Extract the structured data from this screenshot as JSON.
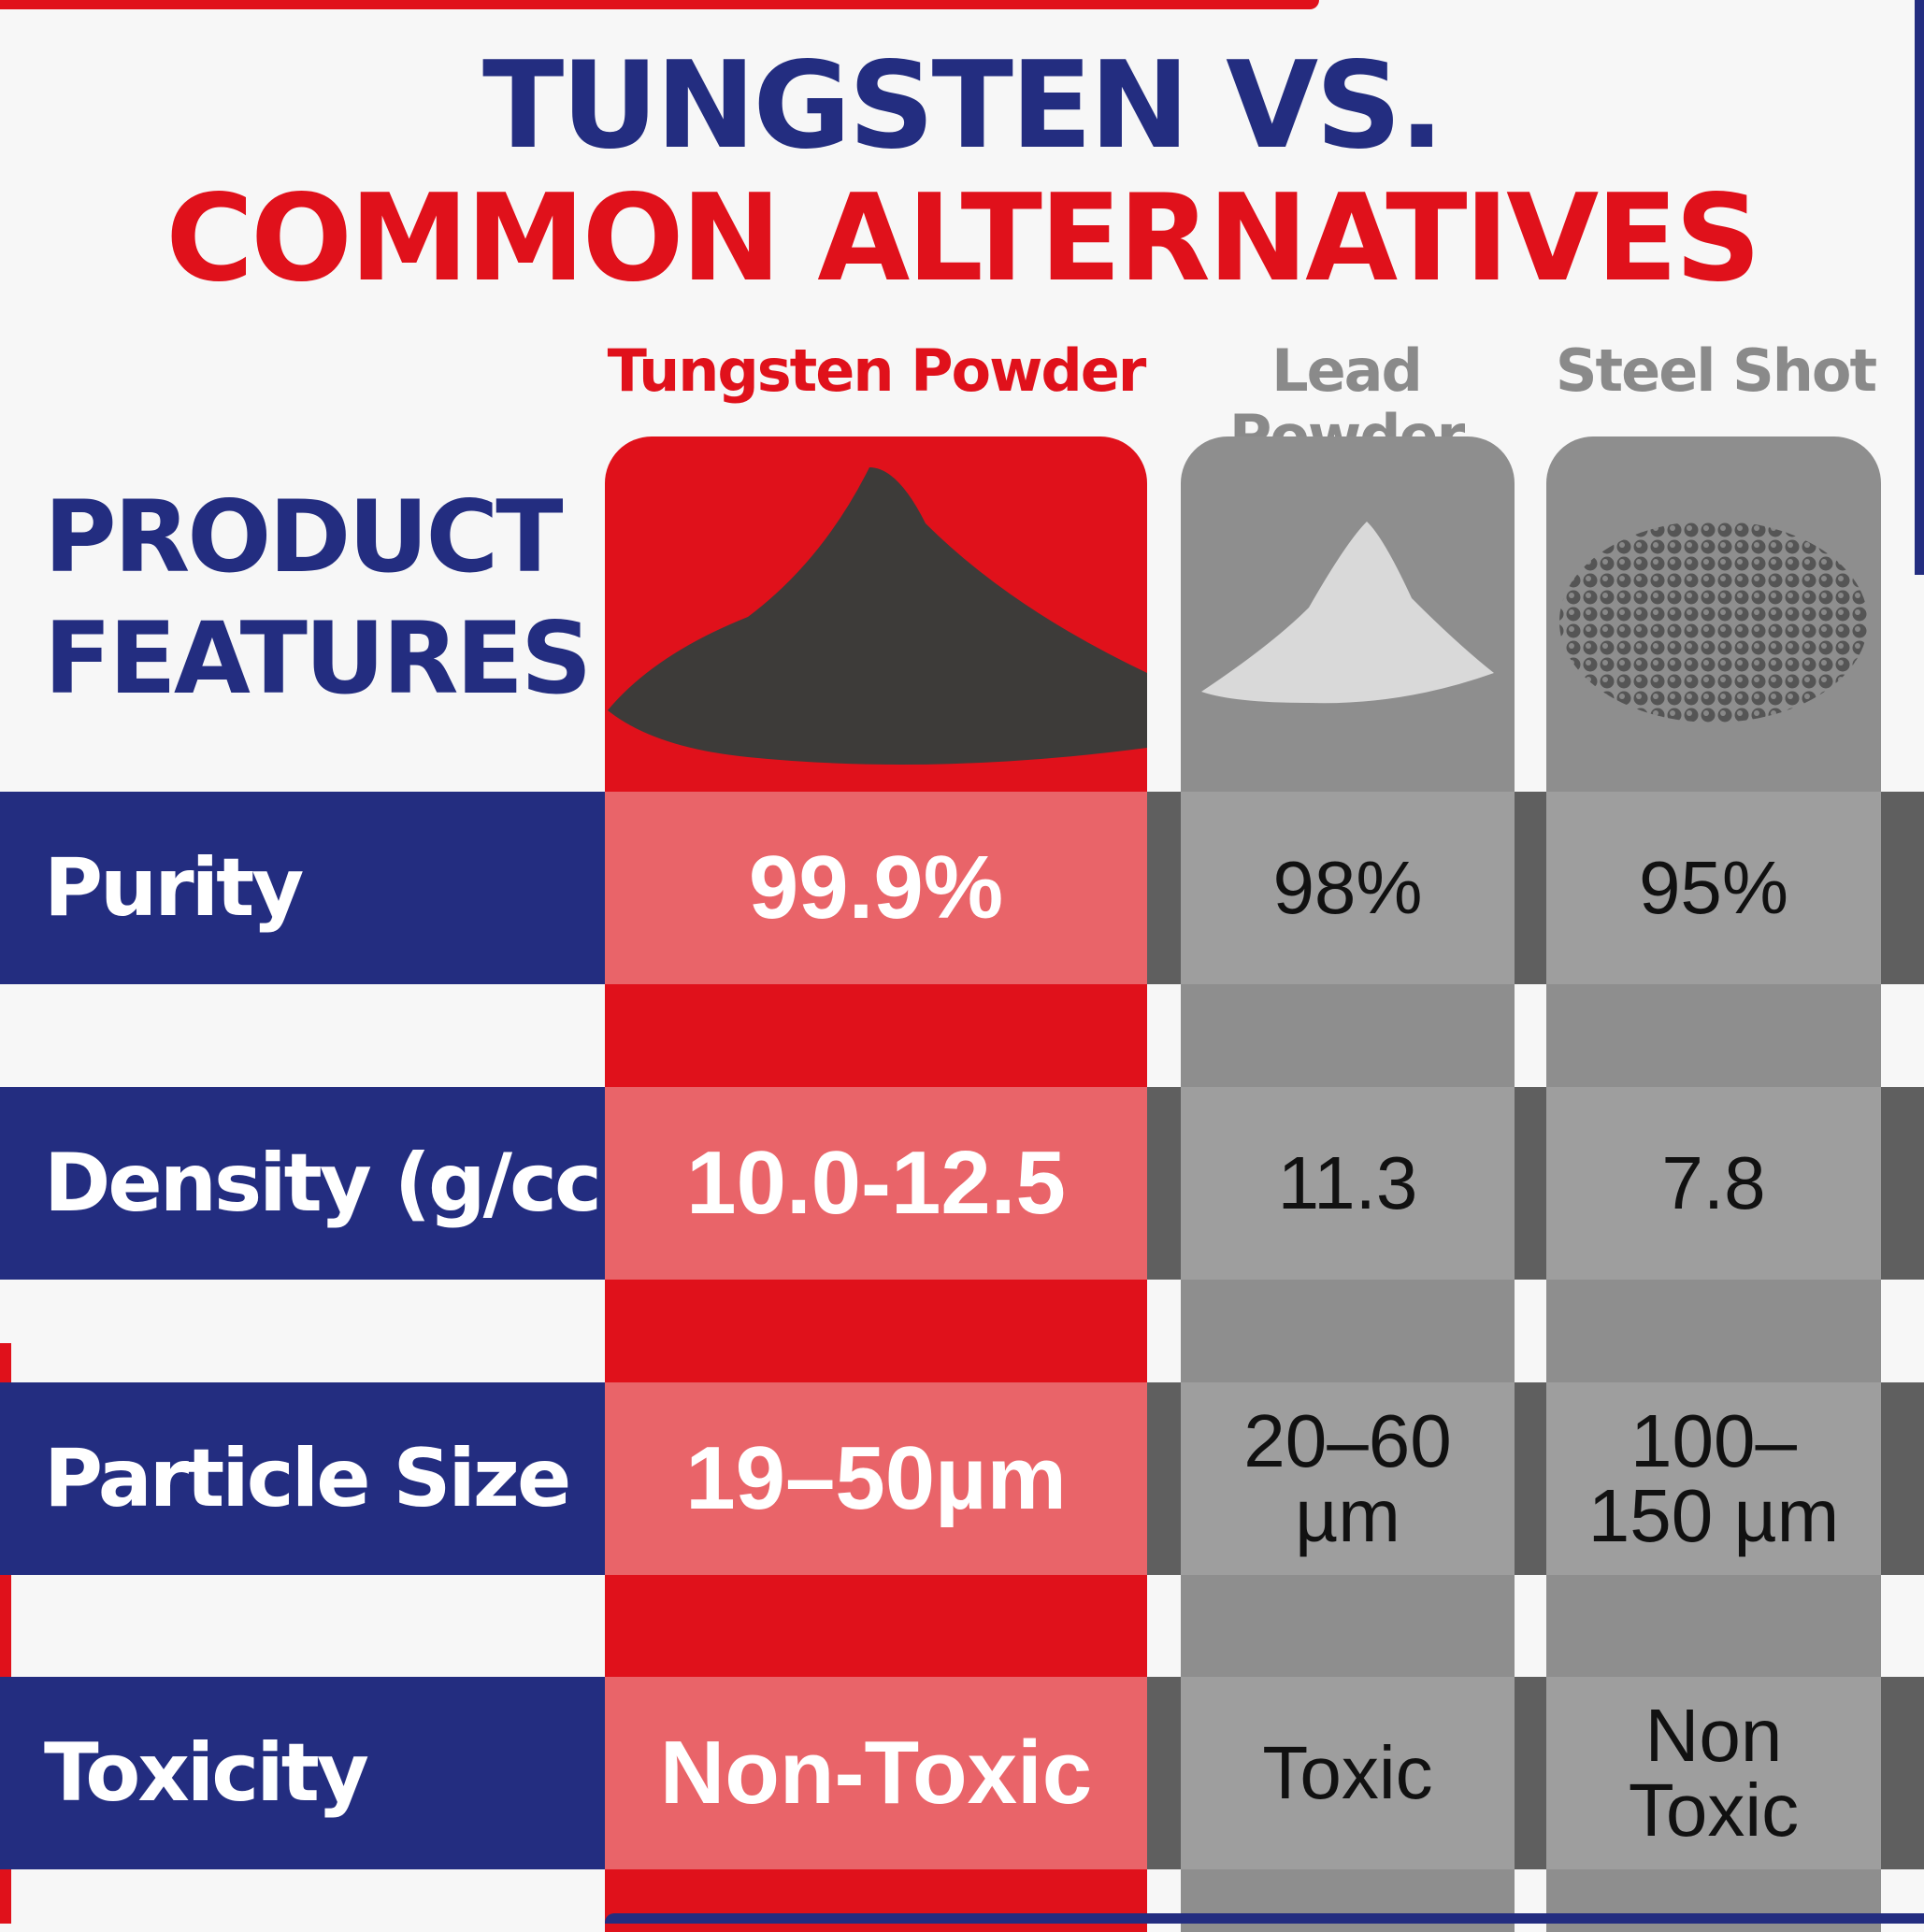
{
  "title": {
    "line1": "TUNGSTEN VS.",
    "line2": "COMMON ALTERNATIVES"
  },
  "table": {
    "corner": "PRODUCT FEATURES",
    "columns": [
      "Tungsten Powder",
      "Lead Powder",
      "Steel Shot"
    ],
    "rows": [
      {
        "label": "Purity",
        "cells": [
          "99.9%",
          "98%",
          "95%"
        ]
      },
      {
        "label": "Density (g/cc)",
        "cells": [
          "10.0-12.5",
          "11.3",
          "7.8"
        ]
      },
      {
        "label": "Particle Size",
        "cells": [
          "19–50µm",
          "20–60 µm",
          "100–150 µm"
        ]
      },
      {
        "label": "Toxicity",
        "cells": [
          "Non-Toxic",
          "Toxic",
          "Non Toxic"
        ]
      }
    ]
  }
}
